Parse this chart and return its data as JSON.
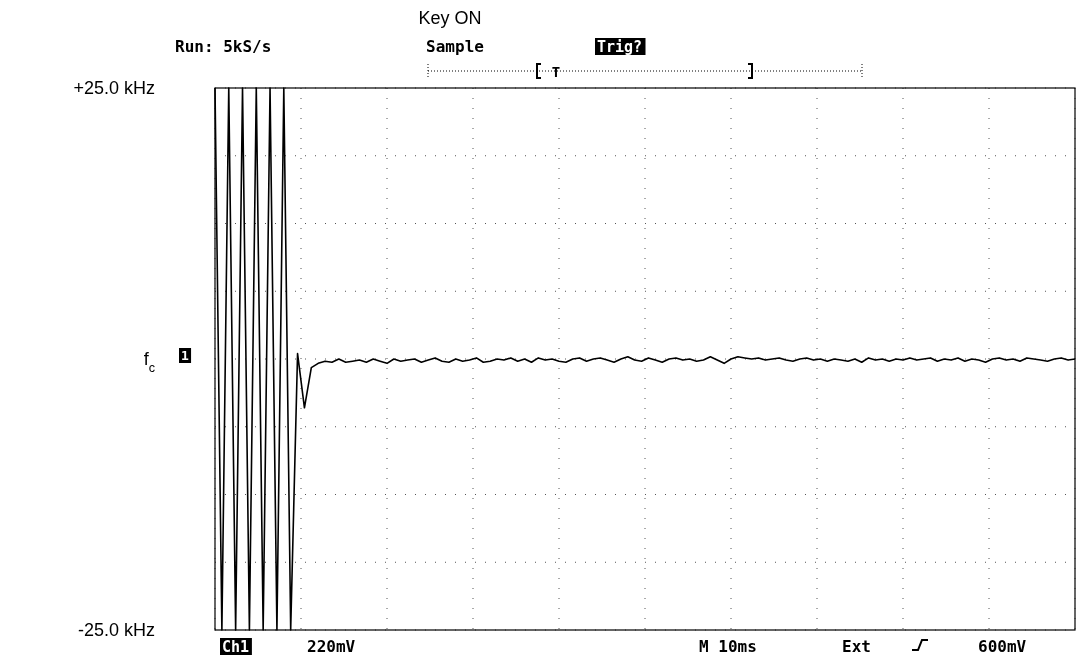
{
  "chart_data": {
    "type": "line",
    "annotations": [
      "Key ON",
      "Run: 5kS/s",
      "Sample",
      "Trig?",
      "T",
      "1",
      "Ch1",
      "220mV",
      "M 10ms",
      "Ext",
      "600mV"
    ],
    "categories": [
      null,
      null,
      null,
      null,
      null,
      null,
      null,
      null,
      null,
      null,
      null,
      null,
      null,
      null,
      null,
      null,
      null,
      null,
      null,
      null,
      null,
      null,
      null,
      null,
      null,
      null,
      null,
      null,
      null,
      null,
      null,
      null,
      null,
      null,
      null,
      null,
      null,
      null,
      null,
      null,
      null,
      null,
      null,
      null,
      null,
      null,
      null,
      null,
      null,
      null,
      null,
      null,
      null,
      null,
      null,
      null,
      null,
      null,
      null,
      null,
      null,
      null,
      null,
      null,
      null,
      null,
      null,
      null,
      null,
      null,
      null,
      null,
      null,
      null,
      null,
      null,
      null,
      null,
      null,
      null,
      null,
      null,
      null,
      null,
      null,
      null,
      null,
      null,
      null,
      null,
      null,
      null,
      null,
      null,
      null,
      null,
      null,
      null,
      null,
      null,
      null,
      null,
      null,
      null,
      null,
      null,
      null,
      null,
      null,
      null,
      null,
      null,
      null,
      null,
      null,
      null,
      null,
      null,
      null,
      null,
      null,
      null,
      null,
      null,
      null,
      null
    ],
    "series": [
      {
        "color": "#000000",
        "values": [
          25,
          -25,
          25,
          -25,
          25,
          -25,
          25,
          -25,
          25,
          -25,
          25,
          -25,
          0.5,
          -4.5,
          -0.8,
          -0.4,
          -0.2,
          -0.3,
          0,
          -0.3,
          -0.2,
          -0.1,
          -0.3,
          0,
          -0.2,
          -0.4,
          0,
          -0.2,
          -0.1,
          0,
          -0.3,
          -0.1,
          0.1,
          -0.2,
          -0.3,
          0,
          -0.2,
          -0.1,
          0.1,
          -0.3,
          -0.2,
          0,
          -0.1,
          0.1,
          -0.2,
          0,
          -0.3,
          0.1,
          -0.1,
          0,
          -0.2,
          -0.3,
          0,
          0.1,
          -0.2,
          0,
          0.1,
          -0.1,
          -0.3,
          0,
          0.2,
          -0.1,
          -0.2,
          0.1,
          -0.1,
          -0.3,
          0,
          0.1,
          -0.1,
          0,
          -0.2,
          -0.1,
          0.2,
          -0.1,
          -0.4,
          0,
          0.2,
          0.1,
          0,
          0.1,
          -0.1,
          0,
          0.1,
          -0.1,
          -0.2,
          0,
          0.1,
          -0.1,
          0,
          -0.2,
          0,
          -0.1,
          -0.2,
          0,
          -0.3,
          0.1,
          -0.1,
          0,
          -0.2,
          0,
          -0.1,
          0.1,
          -0.1,
          0,
          0.1,
          -0.2,
          0,
          -0.1,
          0.1,
          -0.2,
          0,
          -0.1,
          -0.3,
          0,
          0.1,
          -0.1,
          0,
          -0.2,
          0.1,
          0,
          -0.1,
          -0.2,
          0,
          0.1,
          -0.1,
          0
        ]
      }
    ],
    "ylim": [
      -25,
      25
    ],
    "yticks": [
      {
        "value": 25,
        "label": "+25.0 kHz"
      },
      {
        "value": 18.75,
        "label": null
      },
      {
        "value": 12.5,
        "label": null
      },
      {
        "value": 6.25,
        "label": null
      },
      {
        "value": 0,
        "label": "f$_{c}$"
      },
      {
        "value": -6.25,
        "label": null
      },
      {
        "value": -12.5,
        "label": null
      },
      {
        "value": -18.75,
        "label": null
      },
      {
        "value": -25,
        "label": "-25.0 kHz"
      }
    ],
    "tick_labels": "y",
    "grid": true,
    "marker": "none",
    "line_style": "solid"
  }
}
